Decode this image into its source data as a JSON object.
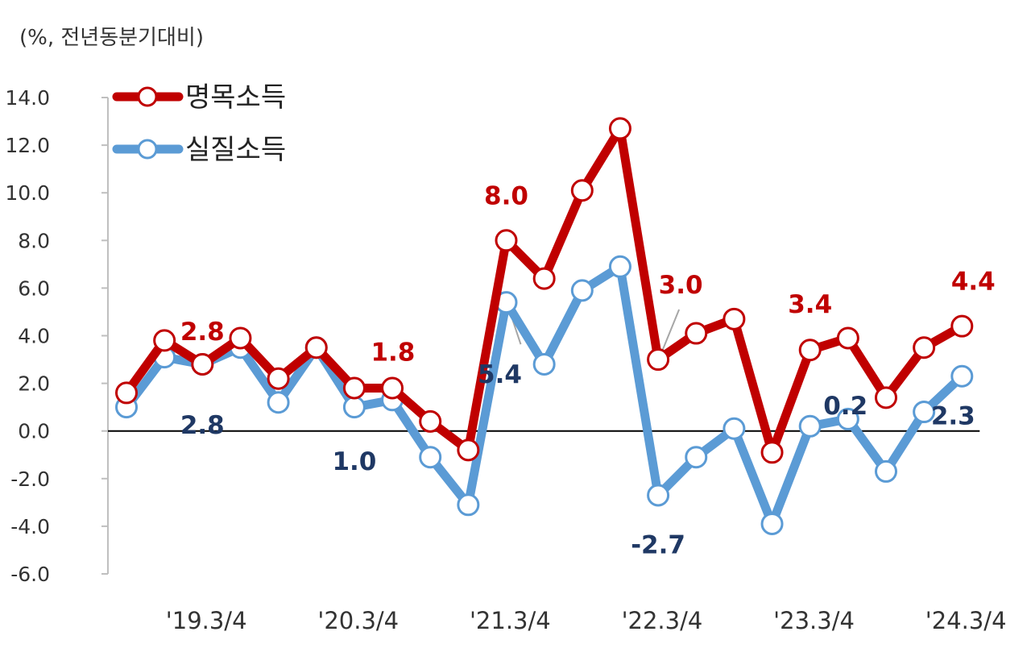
{
  "unit_label": "(%, 전년동분기대비)",
  "chart_data": {
    "type": "line",
    "ylim": [
      -6.0,
      14.0
    ],
    "ystep": 2.0,
    "yticks": [
      "14.0",
      "12.0",
      "10.0",
      "8.0",
      "6.0",
      "4.0",
      "2.0",
      "0.0",
      "-2.0",
      "-4.0",
      "-6.0"
    ],
    "x_tick_labels": [
      {
        "index": 1,
        "label": "'19.3/4"
      },
      {
        "index": 5,
        "label": "'20.3/4"
      },
      {
        "index": 9,
        "label": "'21.3/4"
      },
      {
        "index": 13,
        "label": "'22.3/4"
      },
      {
        "index": 17,
        "label": "'23.3/4"
      },
      {
        "index": 21,
        "label": "'24.3/4"
      }
    ],
    "grid": false,
    "legend_position": "top-left",
    "series": [
      {
        "name": "명목소득",
        "color": "#c00000",
        "values": [
          1.6,
          3.8,
          2.8,
          3.9,
          2.2,
          3.5,
          1.8,
          1.8,
          0.4,
          -0.8,
          8.0,
          6.4,
          10.1,
          12.7,
          3.0,
          4.1,
          4.7,
          -0.9,
          3.4,
          3.9,
          1.4,
          3.5,
          4.4
        ],
        "data_labels": [
          {
            "index": 2,
            "text": "2.8"
          },
          {
            "index": 6,
            "text": "1.8"
          },
          {
            "index": 10,
            "text": "8.0"
          },
          {
            "index": 14,
            "text": "3.0"
          },
          {
            "index": 18,
            "text": "3.4"
          },
          {
            "index": 22,
            "text": "4.4"
          }
        ]
      },
      {
        "name": "실질소득",
        "color": "#5b9bd5",
        "values": [
          1.0,
          3.1,
          2.8,
          3.5,
          1.2,
          3.5,
          1.0,
          1.3,
          -1.1,
          -3.1,
          5.4,
          2.8,
          5.9,
          6.9,
          -2.7,
          -1.1,
          0.1,
          -3.9,
          0.2,
          0.5,
          -1.7,
          0.8,
          2.3
        ],
        "data_labels": [
          {
            "index": 2,
            "text": "2.8"
          },
          {
            "index": 6,
            "text": "1.0"
          },
          {
            "index": 10,
            "text": "5.4"
          },
          {
            "index": 14,
            "text": "-2.7"
          },
          {
            "index": 18,
            "text": "0.2"
          },
          {
            "index": 22,
            "text": "2.3"
          }
        ]
      }
    ]
  }
}
